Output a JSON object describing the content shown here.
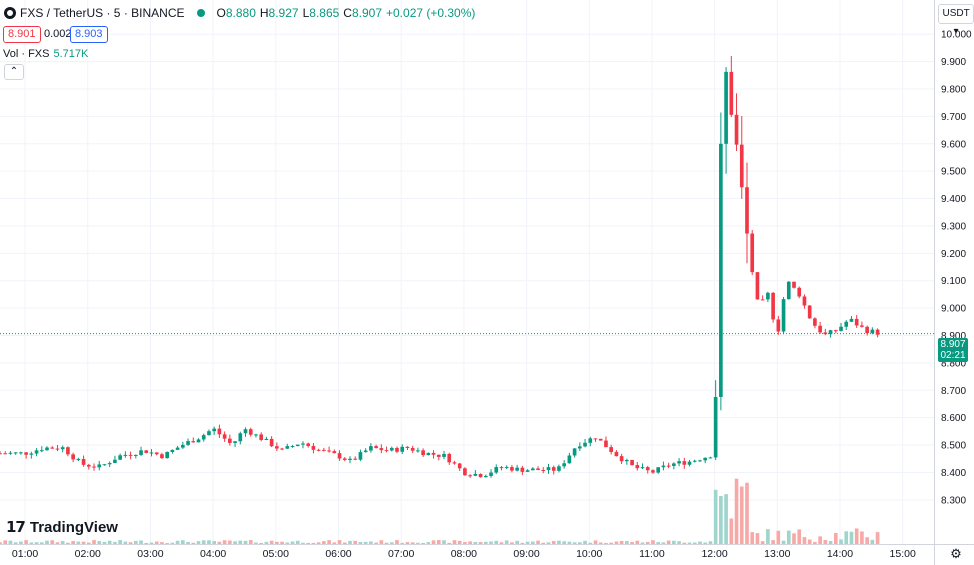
{
  "header": {
    "symbol": "FXS / TetherUS · 5 · BINANCE",
    "open_label": "O",
    "open": "8.880",
    "high_label": "H",
    "high": "8.927",
    "low_label": "L",
    "low": "8.865",
    "close_label": "C",
    "close": "8.907",
    "change": "+0.027 (+0.30%)"
  },
  "trade": {
    "sell": "8.901",
    "spread": "0.002",
    "buy": "8.903"
  },
  "volume": {
    "label": "Vol · FXS",
    "value": "5.717K"
  },
  "currency": "USDT",
  "last_price": {
    "price": "8.907",
    "countdown": "02:21"
  },
  "brand": "TradingView",
  "colors": {
    "up": "#089981",
    "down": "#f23645",
    "vol_up": "#9fd5cc",
    "vol_down": "#f7a9a7",
    "grid": "#f0f3fa",
    "axis_text": "#131722"
  },
  "chart_data": {
    "type": "candlestick",
    "symbol": "FXS / TetherUS",
    "interval": "5",
    "exchange": "BINANCE",
    "x_ticks": [
      "01:00",
      "02:00",
      "03:00",
      "04:00",
      "05:00",
      "06:00",
      "07:00",
      "08:00",
      "09:00",
      "10:00",
      "11:00",
      "12:00",
      "13:00",
      "14:00",
      "15:00"
    ],
    "y_ticks": [
      "8.300",
      "8.400",
      "8.500",
      "8.600",
      "8.700",
      "8.800",
      "8.900",
      "9.000",
      "9.100",
      "9.200",
      "9.300",
      "9.400",
      "9.500",
      "9.600",
      "9.700",
      "9.800",
      "9.900",
      "10.000"
    ],
    "ylim": [
      8.23,
      10.03
    ],
    "xlim_hours": [
      0.6,
      15.5
    ],
    "last_price": 8.907,
    "grid": true,
    "price_anchors": [
      [
        0.6,
        8.47
      ],
      [
        1.0,
        8.47
      ],
      [
        1.3,
        8.49
      ],
      [
        1.6,
        8.49
      ],
      [
        1.9,
        8.43
      ],
      [
        2.2,
        8.42
      ],
      [
        2.5,
        8.46
      ],
      [
        2.9,
        8.48
      ],
      [
        3.2,
        8.46
      ],
      [
        3.5,
        8.5
      ],
      [
        3.8,
        8.53
      ],
      [
        4.0,
        8.56
      ],
      [
        4.3,
        8.5
      ],
      [
        4.5,
        8.56
      ],
      [
        4.8,
        8.52
      ],
      [
        5.1,
        8.48
      ],
      [
        5.4,
        8.51
      ],
      [
        5.7,
        8.48
      ],
      [
        6.0,
        8.46
      ],
      [
        6.2,
        8.44
      ],
      [
        6.5,
        8.49
      ],
      [
        6.8,
        8.48
      ],
      [
        7.1,
        8.49
      ],
      [
        7.4,
        8.47
      ],
      [
        7.7,
        8.46
      ],
      [
        8.0,
        8.4
      ],
      [
        8.3,
        8.39
      ],
      [
        8.6,
        8.42
      ],
      [
        8.9,
        8.41
      ],
      [
        9.2,
        8.41
      ],
      [
        9.5,
        8.41
      ],
      [
        9.8,
        8.5
      ],
      [
        10.1,
        8.53
      ],
      [
        10.4,
        8.47
      ],
      [
        10.7,
        8.42
      ],
      [
        11.0,
        8.4
      ],
      [
        11.3,
        8.43
      ],
      [
        11.6,
        8.44
      ],
      [
        11.9,
        8.46
      ],
      [
        12.0,
        8.47
      ],
      [
        12.05,
        9.2
      ],
      [
        12.15,
        9.85
      ],
      [
        12.25,
        9.8
      ],
      [
        12.4,
        9.45
      ],
      [
        12.55,
        9.2
      ],
      [
        12.7,
        9.0
      ],
      [
        12.85,
        9.05
      ],
      [
        13.0,
        8.9
      ],
      [
        13.15,
        9.1
      ],
      [
        13.35,
        9.05
      ],
      [
        13.55,
        8.95
      ],
      [
        13.75,
        8.9
      ],
      [
        13.95,
        8.92
      ],
      [
        14.15,
        8.96
      ],
      [
        14.4,
        8.92
      ],
      [
        14.6,
        8.91
      ]
    ],
    "volume_label": "Vol · FXS",
    "volume_last": "5.717K"
  }
}
